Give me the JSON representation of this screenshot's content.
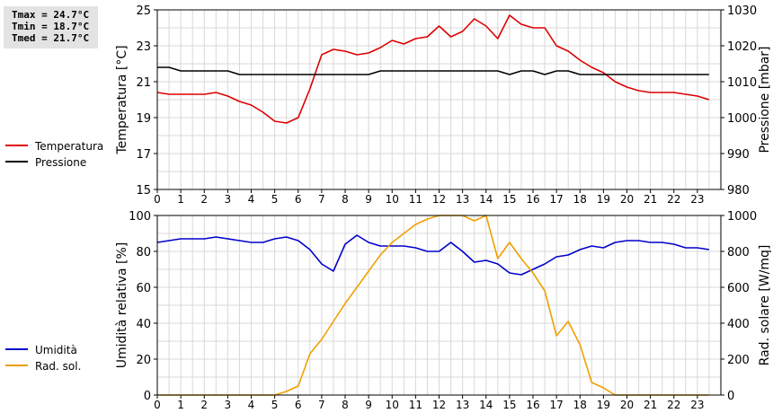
{
  "stats": {
    "tmax": "Tmax = 24.7°C",
    "tmin": "Tmin = 18.7°C",
    "tmed": "Tmed = 21.7°C"
  },
  "colors": {
    "temperature": "#dd0000",
    "pressure": "#000000",
    "humidity": "#0000cc",
    "radiation": "#f0a000",
    "grid": "#d8d8d8",
    "stats_bg": "#e3e3e3"
  },
  "chart_data": [
    {
      "type": "line",
      "ylabel_left": "Temperatura [°C]",
      "ylabel_right": "Pressione [mbar]",
      "ylim_left": [
        15,
        25
      ],
      "ylim_right": [
        980,
        1030
      ],
      "yticks_left": [
        "15",
        "17",
        "19",
        "21",
        "23",
        "25"
      ],
      "yticks_right": [
        "980",
        "990",
        "1000",
        "1010",
        "1020",
        "1030"
      ],
      "xlim": [
        0,
        24
      ],
      "xticks": [
        "0",
        "1",
        "2",
        "3",
        "4",
        "5",
        "6",
        "7",
        "8",
        "9",
        "10",
        "11",
        "12",
        "13",
        "14",
        "15",
        "16",
        "17",
        "18",
        "19",
        "20",
        "21",
        "22",
        "23"
      ],
      "grid": true,
      "legend_position": "left",
      "series": [
        {
          "name": "Temperatura",
          "color": "#dd0000",
          "axis": "left",
          "x": [
            0,
            0.5,
            1,
            1.5,
            2,
            2.5,
            3,
            3.5,
            4,
            4.5,
            5,
            5.5,
            6,
            6.5,
            7,
            7.5,
            8,
            8.5,
            9,
            9.5,
            10,
            10.5,
            11,
            11.5,
            12,
            12.5,
            13,
            13.5,
            14,
            14.5,
            15,
            15.5,
            16,
            16.5,
            17,
            17.5,
            18,
            18.5,
            19,
            19.5,
            20,
            20.5,
            21,
            21.5,
            22,
            22.5,
            23,
            23.5
          ],
          "values": [
            20.4,
            20.3,
            20.3,
            20.3,
            20.3,
            20.4,
            20.2,
            19.9,
            19.7,
            19.3,
            18.8,
            18.7,
            19.0,
            20.6,
            22.5,
            22.8,
            22.7,
            22.5,
            22.6,
            22.9,
            23.3,
            23.1,
            23.4,
            23.5,
            24.1,
            23.5,
            23.8,
            24.5,
            24.1,
            23.4,
            24.7,
            24.2,
            24.0,
            24.0,
            23.0,
            22.7,
            22.2,
            21.8,
            21.5,
            21.0,
            20.7,
            20.5,
            20.4,
            20.4,
            20.4,
            20.3,
            20.2,
            20.0
          ]
        },
        {
          "name": "Pressione",
          "color": "#000000",
          "axis": "right",
          "x": [
            0,
            0.5,
            1,
            1.5,
            2,
            2.5,
            3,
            3.5,
            4,
            4.5,
            5,
            5.5,
            6,
            6.5,
            7,
            7.5,
            8,
            8.5,
            9,
            9.5,
            10,
            10.5,
            11,
            11.5,
            12,
            12.5,
            13,
            13.5,
            14,
            14.5,
            15,
            15.5,
            16,
            16.5,
            17,
            17.5,
            18,
            18.5,
            19,
            19.5,
            20,
            20.5,
            21,
            21.5,
            22,
            22.5,
            23,
            23.5
          ],
          "values": [
            1014,
            1014,
            1013,
            1013,
            1013,
            1013,
            1013,
            1012,
            1012,
            1012,
            1012,
            1012,
            1012,
            1012,
            1012,
            1012,
            1012,
            1012,
            1012,
            1013,
            1013,
            1013,
            1013,
            1013,
            1013,
            1013,
            1013,
            1013,
            1013,
            1013,
            1012,
            1013,
            1013,
            1012,
            1013,
            1013,
            1012,
            1012,
            1012,
            1012,
            1012,
            1012,
            1012,
            1012,
            1012,
            1012,
            1012,
            1012
          ]
        }
      ]
    },
    {
      "type": "line",
      "ylabel_left": "Umidità relativa [%]",
      "ylabel_right": "Rad. solare [W/mq]",
      "ylim_left": [
        0,
        100
      ],
      "ylim_right": [
        0,
        1000
      ],
      "yticks_left": [
        "0",
        "20",
        "40",
        "60",
        "80",
        "100"
      ],
      "yticks_right": [
        "0",
        "200",
        "400",
        "600",
        "800",
        "1000"
      ],
      "xlim": [
        0,
        24
      ],
      "xticks": [
        "0",
        "1",
        "2",
        "3",
        "4",
        "5",
        "6",
        "7",
        "8",
        "9",
        "10",
        "11",
        "12",
        "13",
        "14",
        "15",
        "16",
        "17",
        "18",
        "19",
        "20",
        "21",
        "22",
        "23"
      ],
      "grid": true,
      "legend_position": "left",
      "series": [
        {
          "name": "Umidità",
          "color": "#0000cc",
          "axis": "left",
          "x": [
            0,
            0.5,
            1,
            1.5,
            2,
            2.5,
            3,
            3.5,
            4,
            4.5,
            5,
            5.5,
            6,
            6.5,
            7,
            7.5,
            8,
            8.5,
            9,
            9.5,
            10,
            10.5,
            11,
            11.5,
            12,
            12.5,
            13,
            13.5,
            14,
            14.5,
            15,
            15.5,
            16,
            16.5,
            17,
            17.5,
            18,
            18.5,
            19,
            19.5,
            20,
            20.5,
            21,
            21.5,
            22,
            22.5,
            23,
            23.5
          ],
          "values": [
            85,
            86,
            87,
            87,
            87,
            88,
            87,
            86,
            85,
            85,
            87,
            88,
            86,
            81,
            73,
            69,
            84,
            89,
            85,
            83,
            83,
            83,
            82,
            80,
            80,
            85,
            80,
            74,
            75,
            73,
            68,
            67,
            70,
            73,
            77,
            78,
            81,
            83,
            82,
            85,
            86,
            86,
            85,
            85,
            84,
            82,
            82,
            81
          ]
        },
        {
          "name": "Rad. sol.",
          "color": "#f0a000",
          "axis": "right",
          "x": [
            0,
            0.5,
            1,
            1.5,
            2,
            2.5,
            3,
            3.5,
            4,
            4.5,
            5,
            5.5,
            6,
            6.5,
            7,
            7.5,
            8,
            8.5,
            9,
            9.5,
            10,
            10.5,
            11,
            11.5,
            12,
            12.5,
            13,
            13.5,
            14,
            14.5,
            15,
            15.5,
            16,
            16.5,
            17,
            17.5,
            18,
            18.5,
            19,
            19.5,
            20,
            20.5,
            21,
            21.5,
            22,
            22.5,
            23,
            23.5
          ],
          "values": [
            0,
            0,
            0,
            0,
            0,
            0,
            0,
            0,
            0,
            0,
            0,
            20,
            50,
            230,
            310,
            410,
            510,
            600,
            690,
            780,
            850,
            900,
            950,
            980,
            1000,
            1000,
            1000,
            970,
            1000,
            760,
            850,
            760,
            680,
            580,
            330,
            410,
            280,
            70,
            40,
            0,
            0,
            0,
            0,
            0,
            0,
            0,
            0,
            0
          ]
        }
      ]
    }
  ]
}
